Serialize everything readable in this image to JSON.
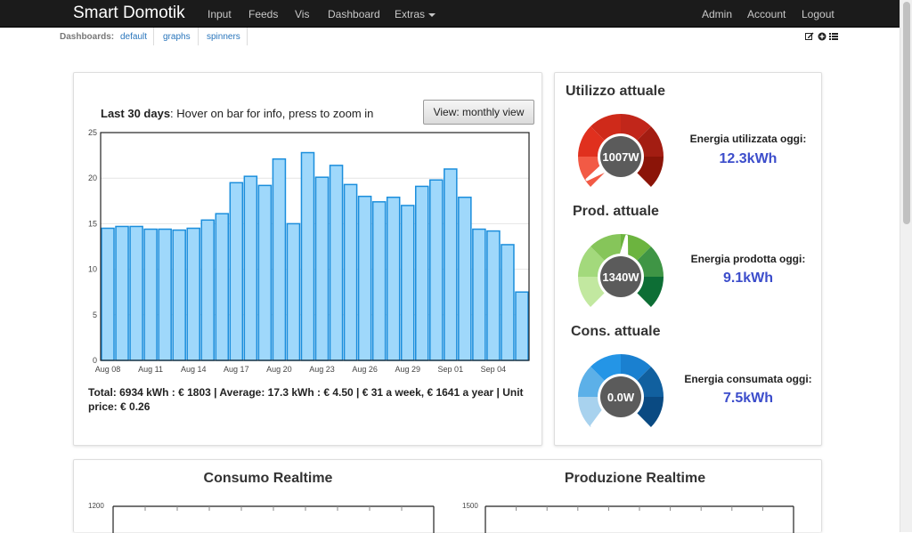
{
  "nav": {
    "brand": "Smart Domotik",
    "links": [
      "Input",
      "Feeds",
      "Vis",
      "Dashboard",
      "Extras"
    ],
    "right_links": [
      "Admin",
      "Account",
      "Logout"
    ]
  },
  "dashboards": {
    "label": "Dashboards:",
    "items": [
      "default",
      "graphs",
      "spinners"
    ],
    "tools": [
      "edit-icon",
      "add-icon",
      "list-icon"
    ]
  },
  "bar_panel": {
    "title_bold": "Last 30 days",
    "title_rest": ": Hover on bar for info, press to zoom in",
    "view_button": "View: monthly view",
    "summary": "Total: 6934 kWh : € 1803 | Average: 17.3 kWh : € 4.50 | € 31 a week, € 1641 a year | Unit price: € 0.26"
  },
  "chart_data": {
    "type": "bar",
    "categories": [
      "Aug 08",
      "Aug 09",
      "Aug 10",
      "Aug 11",
      "Aug 12",
      "Aug 13",
      "Aug 14",
      "Aug 15",
      "Aug 16",
      "Aug 17",
      "Aug 18",
      "Aug 19",
      "Aug 20",
      "Aug 21",
      "Aug 22",
      "Aug 23",
      "Aug 24",
      "Aug 25",
      "Aug 26",
      "Aug 27",
      "Aug 28",
      "Aug 29",
      "Aug 30",
      "Aug 31",
      "Sep 01",
      "Sep 02",
      "Sep 03",
      "Sep 04",
      "Sep 05",
      "Sep 06"
    ],
    "values": [
      14.5,
      14.7,
      14.7,
      14.4,
      14.4,
      14.3,
      14.5,
      15.4,
      16.1,
      19.5,
      20.2,
      19.2,
      22.1,
      15.0,
      22.8,
      20.1,
      21.4,
      19.3,
      18.0,
      17.4,
      17.9,
      17.0,
      19.1,
      19.8,
      21.0,
      17.9,
      14.4,
      14.2,
      12.7,
      7.5
    ],
    "xticks": [
      "Aug 08",
      "Aug 11",
      "Aug 14",
      "Aug 17",
      "Aug 20",
      "Aug 23",
      "Aug 26",
      "Aug 29",
      "Sep 01",
      "Sep 04"
    ],
    "yticks": [
      "0",
      "5",
      "10",
      "15",
      "20",
      "25"
    ],
    "ylim": [
      0,
      25
    ],
    "grid": true,
    "bar_color": "#9fd8fb",
    "bar_border": "#1b8edc"
  },
  "gauges": [
    {
      "title": "Utilizzo attuale",
      "center_value": "1007W",
      "label": "Energia utilizzata oggi:",
      "value": "12.3kWh",
      "needle_fraction": 0.04,
      "colors": [
        "#f25a45",
        "#e0301e",
        "#cf2a1a",
        "#c1261a",
        "#a31d12",
        "#8b1408"
      ]
    },
    {
      "title": "Prod. attuale",
      "center_value": "1340W",
      "label": "Energia prodotta oggi:",
      "value": "9.1kWh",
      "needle_fraction": 0.53,
      "colors": [
        "#c2e8a0",
        "#a3d97c",
        "#86c55a",
        "#6cb43f",
        "#3f9545",
        "#0d6e35"
      ]
    },
    {
      "title": "Cons. attuale",
      "center_value": "0.0W",
      "label": "Energia consumata oggi:",
      "value": "7.5kWh",
      "needle_fraction": 0.0,
      "colors": [
        "#a8d2ee",
        "#5cb0e8",
        "#2495e6",
        "#1a80d0",
        "#11609f",
        "#0a4a82"
      ]
    }
  ],
  "realtime": {
    "left_title": "Consumo Realtime",
    "left_ytick": "1200",
    "right_title": "Produzione Realtime",
    "right_ytick": "1500"
  }
}
